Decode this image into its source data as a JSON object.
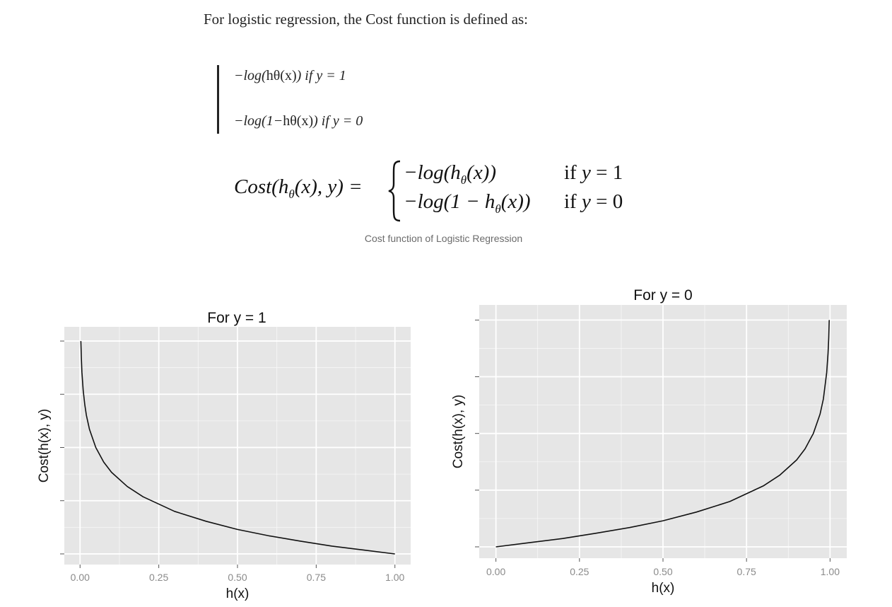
{
  "article": {
    "intro": "For logistic regression, the Cost function is defined as:",
    "quote": {
      "line1": {
        "prefix": "−log(",
        "h": "hθ(x)",
        "suffix": ") if y = 1"
      },
      "line2": {
        "prefix": "−log(1−",
        "h": "hθ(x)",
        "suffix": ") if y = 0"
      }
    },
    "formula": {
      "lhs_pre": "Cost(h",
      "lhs_sub": "θ",
      "lhs_post": "(x), y) =",
      "case1_pre": "−log(h",
      "case1_sub": "θ",
      "case1_post": "(x))",
      "case2_pre": "−log(1 − h",
      "case2_sub": "θ",
      "case2_post": "(x))",
      "cond1_if": "if ",
      "cond1_var": "y",
      "cond1_eq": " = 1",
      "cond2_if": "if ",
      "cond2_var": "y",
      "cond2_eq": " = 0"
    },
    "caption": "Cost function of Logistic Regression"
  },
  "colors": {
    "text": "#242424",
    "caption": "#6b6b6b",
    "panel": "#e6e6e6",
    "grid": "#ffffff",
    "curve": "#111111",
    "tick_label": "#8a8a8a"
  },
  "chart_data": [
    {
      "type": "line",
      "title": "For y = 1",
      "xlabel": "h(x)",
      "ylabel": "Cost(h(x), y)",
      "x_ticks": [
        "0.00",
        "0.25",
        "0.50",
        "0.75",
        "1.00"
      ],
      "xlim": [
        -0.05,
        1.05
      ],
      "ylim": [
        -0.3,
        6.4
      ],
      "y_tick_values": [
        0,
        1.5,
        3,
        4.5,
        6
      ],
      "grid": true,
      "series": [
        {
          "function": "-log(x)",
          "x": [
            0.0025,
            0.004,
            0.006,
            0.01,
            0.015,
            0.02,
            0.03,
            0.05,
            0.075,
            0.1,
            0.15,
            0.2,
            0.3,
            0.4,
            0.5,
            0.6,
            0.7,
            0.8,
            0.9,
            1.0
          ],
          "y": [
            6.0,
            5.52,
            5.12,
            4.61,
            4.2,
            3.91,
            3.51,
            3.0,
            2.59,
            2.3,
            1.9,
            1.61,
            1.2,
            0.92,
            0.69,
            0.51,
            0.36,
            0.22,
            0.11,
            0.0
          ]
        }
      ]
    },
    {
      "type": "line",
      "title": "For y = 0",
      "xlabel": "h(x)",
      "ylabel": "Cost(h(x), y)",
      "x_ticks": [
        "0.00",
        "0.25",
        "0.50",
        "0.75",
        "1.00"
      ],
      "xlim": [
        -0.05,
        1.05
      ],
      "ylim": [
        -0.3,
        6.4
      ],
      "y_tick_values": [
        0,
        1.5,
        3,
        4.5,
        6
      ],
      "grid": true,
      "series": [
        {
          "function": "-log(1-x)",
          "x": [
            0.0,
            0.1,
            0.2,
            0.3,
            0.4,
            0.5,
            0.6,
            0.7,
            0.8,
            0.85,
            0.9,
            0.925,
            0.95,
            0.97,
            0.98,
            0.99,
            0.994,
            0.996,
            0.9975
          ],
          "y": [
            0.0,
            0.11,
            0.22,
            0.36,
            0.51,
            0.69,
            0.92,
            1.2,
            1.61,
            1.9,
            2.3,
            2.59,
            3.0,
            3.51,
            3.91,
            4.61,
            5.12,
            5.52,
            6.0
          ]
        }
      ]
    }
  ]
}
